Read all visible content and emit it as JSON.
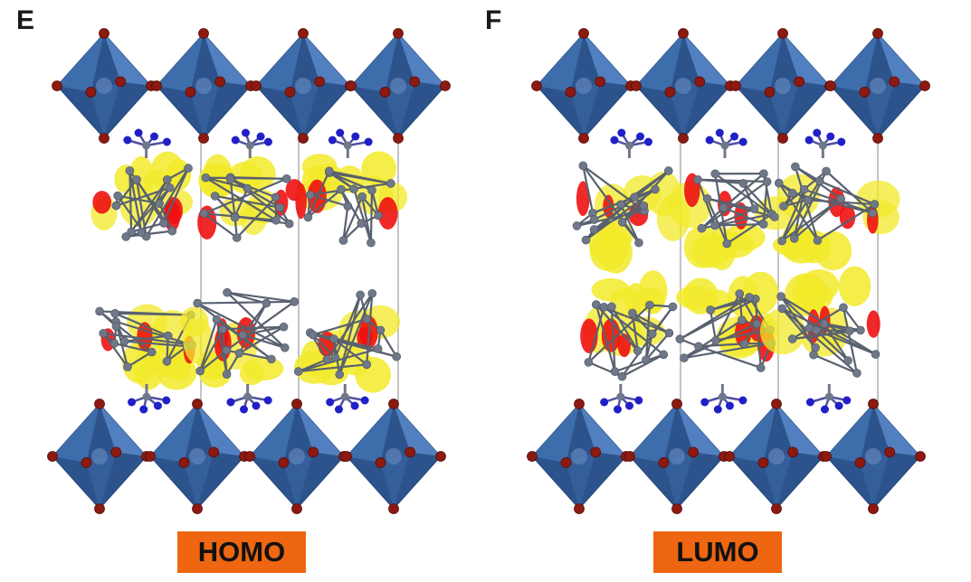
{
  "panels": [
    {
      "letter": "E",
      "orbital": "HOMO",
      "density_region": "outer"
    },
    {
      "letter": "F",
      "orbital": "LUMO",
      "density_region": "inner"
    }
  ],
  "colors": {
    "octahedron": "#3f6fae",
    "octahedron_dark": "#2c538c",
    "oxygen": "#8c1a10",
    "carbon": "#6f7888",
    "nitrogen": "#2020c8",
    "density_positive": "#f2ea2a",
    "density_negative": "#ee1111",
    "label_background": "#ee6611"
  }
}
